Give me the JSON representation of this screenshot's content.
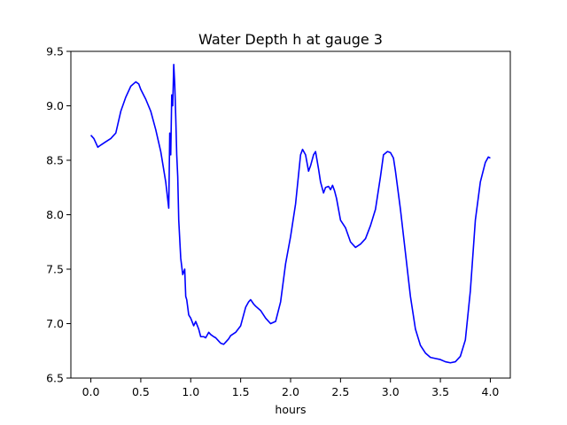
{
  "chart_data": {
    "type": "line",
    "title": "Water Depth h at gauge 3",
    "xlabel": "hours",
    "ylabel": "",
    "xlim": [
      -0.2,
      4.2
    ],
    "ylim": [
      6.5,
      9.5
    ],
    "xticks": [
      0.0,
      0.5,
      1.0,
      1.5,
      2.0,
      2.5,
      3.0,
      3.5,
      4.0
    ],
    "xtick_labels": [
      "0.0",
      "0.5",
      "1.0",
      "1.5",
      "2.0",
      "2.5",
      "3.0",
      "3.5",
      "4.0"
    ],
    "yticks": [
      6.5,
      7.0,
      7.5,
      8.0,
      8.5,
      9.0,
      9.5
    ],
    "ytick_labels": [
      "6.5",
      "7.0",
      "7.5",
      "8.0",
      "8.5",
      "9.0",
      "9.5"
    ],
    "grid": false,
    "series": [
      {
        "color": "#0000ff",
        "x": [
          0.0,
          0.03,
          0.07,
          0.1,
          0.15,
          0.2,
          0.25,
          0.3,
          0.35,
          0.4,
          0.45,
          0.48,
          0.5,
          0.55,
          0.6,
          0.65,
          0.7,
          0.75,
          0.78,
          0.79,
          0.8,
          0.81,
          0.82,
          0.83,
          0.84,
          0.85,
          0.86,
          0.87,
          0.88,
          0.9,
          0.92,
          0.94,
          0.95,
          0.96,
          0.98,
          1.0,
          1.03,
          1.05,
          1.08,
          1.1,
          1.13,
          1.15,
          1.18,
          1.2,
          1.23,
          1.25,
          1.28,
          1.3,
          1.33,
          1.35,
          1.38,
          1.4,
          1.45,
          1.5,
          1.55,
          1.58,
          1.6,
          1.63,
          1.65,
          1.7,
          1.75,
          1.8,
          1.85,
          1.9,
          1.95,
          2.0,
          2.05,
          2.1,
          2.12,
          2.15,
          2.18,
          2.2,
          2.23,
          2.25,
          2.28,
          2.3,
          2.33,
          2.35,
          2.38,
          2.4,
          2.42,
          2.44,
          2.46,
          2.5,
          2.55,
          2.6,
          2.65,
          2.7,
          2.75,
          2.8,
          2.85,
          2.9,
          2.93,
          2.97,
          3.0,
          3.03,
          3.05,
          3.1,
          3.15,
          3.2,
          3.25,
          3.3,
          3.35,
          3.4,
          3.45,
          3.5,
          3.55,
          3.6,
          3.65,
          3.7,
          3.75,
          3.8,
          3.85,
          3.9,
          3.95,
          3.98,
          4.0
        ],
        "y": [
          8.73,
          8.7,
          8.62,
          8.64,
          8.67,
          8.7,
          8.75,
          8.95,
          9.08,
          9.18,
          9.22,
          9.2,
          9.15,
          9.06,
          8.95,
          8.78,
          8.58,
          8.3,
          8.06,
          8.75,
          8.55,
          9.1,
          9.0,
          9.38,
          9.2,
          8.9,
          8.55,
          8.35,
          7.95,
          7.6,
          7.45,
          7.5,
          7.25,
          7.22,
          7.08,
          7.05,
          6.98,
          7.02,
          6.95,
          6.88,
          6.88,
          6.87,
          6.92,
          6.9,
          6.88,
          6.87,
          6.84,
          6.82,
          6.81,
          6.83,
          6.86,
          6.89,
          6.92,
          6.98,
          7.15,
          7.2,
          7.22,
          7.18,
          7.16,
          7.12,
          7.05,
          7.0,
          7.02,
          7.2,
          7.55,
          7.8,
          8.1,
          8.55,
          8.6,
          8.55,
          8.4,
          8.45,
          8.55,
          8.58,
          8.42,
          8.3,
          8.2,
          8.25,
          8.26,
          8.23,
          8.27,
          8.22,
          8.15,
          7.95,
          7.88,
          7.75,
          7.7,
          7.73,
          7.78,
          7.9,
          8.05,
          8.35,
          8.55,
          8.58,
          8.57,
          8.52,
          8.4,
          8.05,
          7.65,
          7.25,
          6.95,
          6.8,
          6.73,
          6.69,
          6.68,
          6.67,
          6.65,
          6.64,
          6.65,
          6.7,
          6.85,
          7.3,
          7.95,
          8.3,
          8.48,
          8.53,
          8.52
        ]
      }
    ]
  }
}
